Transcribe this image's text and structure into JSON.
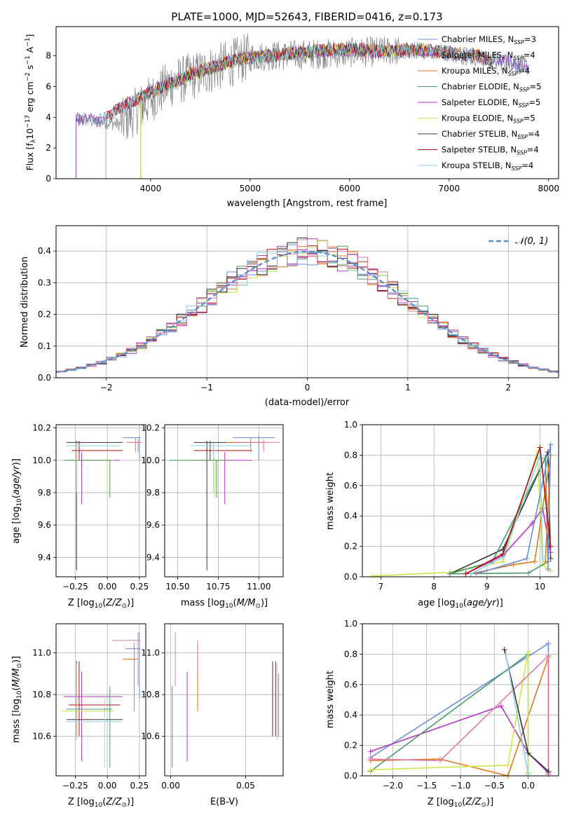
{
  "figure": {
    "title": "PLATE=1000, MJD=52643, FIBERID=0416, z=0.173"
  },
  "colors": {
    "Chabrier MILES": "#6a8fd8",
    "Salpeter MILES": "#9b35b4",
    "Kroupa MILES": "#e07a22",
    "Chabrier ELODIE": "#4a9a6a",
    "Salpeter ELODIE": "#b636c4",
    "Kroupa ELODIE": "#cfe64a",
    "Chabrier STELIB": "#333333",
    "Salpeter STELIB": "#b01010",
    "Kroupa STELIB": "#8dd3e6",
    "Kroupa STELIB (pink variant)": "#e07aa6",
    "data": "#808080"
  },
  "chart_data": [
    {
      "id": "spectrum",
      "type": "line",
      "title": "PLATE=1000, MJD=52643, FIBERID=0416, z=0.173",
      "xlabel": "wavelength [Angstrom, rest frame]",
      "ylabel": "Flux [f_λ 10^-17 erg cm^-2 s^-1 A^-1]",
      "xlim": [
        3050,
        8100
      ],
      "ylim": [
        0,
        9.9
      ],
      "xticks": [
        "4000",
        "5000",
        "6000",
        "7000",
        "8000"
      ],
      "yticks": [
        "0",
        "2",
        "4",
        "6",
        "8"
      ],
      "grid": false,
      "legend": "right",
      "series": [
        {
          "name": "Chabrier MILES, N_SSP=3",
          "x": [
            3250,
            3500,
            3800,
            4000,
            4300,
            4600,
            4900,
            5200,
            5500,
            5800,
            6100,
            6400,
            6700,
            7000,
            7300,
            7600,
            7800
          ],
          "values": [
            3.9,
            3.8,
            5.0,
            5.6,
            6.5,
            7.2,
            7.8,
            8.0,
            8.2,
            8.4,
            8.3,
            8.2,
            8.3,
            8.2,
            7.9,
            7.6,
            7.1
          ]
        },
        {
          "name": "Salpeter MILES, N_SSP=4",
          "x": [
            3250,
            3500,
            3800,
            4000,
            4300,
            4600,
            4900,
            5200,
            5500,
            5800,
            6100,
            6400,
            6700,
            7000,
            7300,
            7600,
            7800
          ],
          "values": [
            3.9,
            3.8,
            5.0,
            5.7,
            6.5,
            7.2,
            7.8,
            8.0,
            8.2,
            8.4,
            8.3,
            8.2,
            8.3,
            8.2,
            7.9,
            7.6,
            7.1
          ]
        },
        {
          "name": "Kroupa MILES, N_SSP=4",
          "x": [
            3550,
            3800,
            4000,
            4300,
            4600,
            4900,
            5200,
            5500,
            5800,
            6100,
            6400,
            6700,
            7000,
            7300,
            7450
          ],
          "values": [
            4.0,
            5.0,
            5.6,
            6.6,
            7.3,
            7.8,
            8.1,
            8.3,
            8.4,
            8.4,
            8.3,
            8.4,
            8.2,
            8.1,
            7.4
          ]
        },
        {
          "name": "Chabrier ELODIE, N_SSP=5",
          "x": [
            3900,
            4000,
            4300,
            4600,
            4900,
            5200,
            5500,
            5800,
            6100,
            6400,
            6800
          ],
          "values": [
            5.2,
            5.5,
            6.5,
            7.2,
            7.8,
            8.0,
            8.2,
            8.3,
            8.4,
            8.3,
            8.4
          ]
        },
        {
          "name": "Salpeter ELODIE, N_SSP=5",
          "x": [
            3900,
            4000,
            4300,
            4600,
            4900,
            5200,
            5500,
            5800,
            6100,
            6400,
            6800
          ],
          "values": [
            5.2,
            5.6,
            6.6,
            7.2,
            7.8,
            8.0,
            8.2,
            8.3,
            8.4,
            8.3,
            8.4
          ]
        },
        {
          "name": "Kroupa ELODIE, N_SSP=5",
          "x": [
            3900,
            4000,
            4300,
            4600,
            4900,
            5200,
            5500,
            5800,
            6100,
            6400,
            6800
          ],
          "values": [
            5.2,
            5.5,
            6.5,
            7.1,
            7.7,
            8.0,
            8.2,
            8.3,
            8.4,
            8.3,
            8.4
          ]
        },
        {
          "name": "Chabrier STELIB, N_SSP=4",
          "x": [
            3550,
            3800,
            4000,
            4300,
            4600,
            4900,
            5200,
            5500,
            5800,
            6100,
            6400,
            6700,
            7000,
            7300,
            7450
          ],
          "values": [
            4.0,
            5.0,
            5.6,
            6.5,
            7.2,
            7.8,
            8.0,
            8.2,
            8.4,
            8.4,
            8.3,
            8.4,
            8.2,
            8.0,
            7.4
          ]
        },
        {
          "name": "Salpeter STELIB, N_SSP=4",
          "x": [
            3550,
            3800,
            4000,
            4300,
            4600,
            4900,
            5200,
            5500,
            5800,
            6100,
            6400,
            6700,
            7000,
            7300,
            7450
          ],
          "values": [
            4.0,
            5.0,
            5.6,
            6.5,
            7.2,
            7.8,
            8.0,
            8.2,
            8.4,
            8.4,
            8.3,
            8.4,
            8.2,
            8.0,
            7.4
          ]
        },
        {
          "name": "Kroupa STELIB, N_SSP=4",
          "x": [
            3550,
            3800,
            4000,
            4300,
            4600,
            4900,
            5200,
            5500,
            5800,
            6100,
            6400,
            6700,
            7000,
            7300,
            7450
          ],
          "values": [
            4.0,
            5.0,
            5.6,
            6.5,
            7.2,
            7.8,
            8.0,
            8.2,
            8.4,
            8.4,
            8.3,
            8.4,
            8.2,
            8.0,
            7.4
          ]
        }
      ]
    },
    {
      "id": "residuals",
      "type": "line",
      "xlabel": "(data-model)/error",
      "ylabel": "Normed distribution",
      "xlim": [
        -2.5,
        2.5
      ],
      "ylim": [
        0,
        0.48
      ],
      "xticks": [
        "−2",
        "−1",
        "0",
        "1",
        "2"
      ],
      "yticks": [
        "0.0",
        "0.1",
        "0.2",
        "0.3",
        "0.4"
      ],
      "grid": true,
      "legend": "top-right",
      "legend_label": "𝒩(0, 1)",
      "gaussian": {
        "mu": 0,
        "sigma": 1
      },
      "bin_width": 0.1
    },
    {
      "id": "age-vs-Z",
      "type": "scatter",
      "xlabel": "Z [log10(Z/Z⊙)]",
      "ylabel": "age  [log10(age/yr)]",
      "xlim": [
        -0.4,
        0.3
      ],
      "ylim": [
        9.28,
        10.22
      ],
      "xticks": [
        "−0.25",
        "0.00",
        "0.25"
      ],
      "yticks": [
        "9.4",
        "9.6",
        "9.8",
        "10.0",
        "10.2"
      ],
      "grid": true
    },
    {
      "id": "age-vs-mass",
      "type": "scatter",
      "xlabel": "mass [log10(M/M⊙)]",
      "xlim": [
        10.42,
        11.15
      ],
      "ylim": [
        9.28,
        10.22
      ],
      "xticks": [
        "10.50",
        "10.75",
        "11.00"
      ],
      "yticks": [
        "9.4",
        "9.6",
        "9.8",
        "10.0",
        "10.2"
      ],
      "grid": true
    },
    {
      "id": "weight-vs-age",
      "type": "line",
      "xlabel": "age  [log10(age/yr)]",
      "ylabel": "mass weight",
      "xlim": [
        6.65,
        10.35
      ],
      "ylim": [
        0,
        1.0
      ],
      "xticks": [
        "7",
        "8",
        "9",
        "10"
      ],
      "yticks": [
        "0.0",
        "0.2",
        "0.4",
        "0.6",
        "0.8",
        "1.0"
      ],
      "grid": true
    },
    {
      "id": "mass-vs-Z",
      "type": "scatter",
      "xlabel": "Z [log10(Z/Z⊙)]",
      "ylabel": "mass [log10(M/M⊙)]",
      "xlim": [
        -0.4,
        0.3
      ],
      "ylim": [
        10.41,
        11.14
      ],
      "xticks": [
        "−0.25",
        "0.00",
        "0.25"
      ],
      "yticks": [
        "10.6",
        "10.8",
        "11.0"
      ],
      "grid": true
    },
    {
      "id": "mass-vs-ebv",
      "type": "scatter",
      "xlabel": "E(B-V)",
      "xlim": [
        -0.004,
        0.075
      ],
      "ylim": [
        10.41,
        11.14
      ],
      "xticks": [
        "0.00",
        "0.05"
      ],
      "yticks": [
        "10.6",
        "10.8",
        "11.0"
      ],
      "grid": true
    },
    {
      "id": "weight-vs-Z",
      "type": "line",
      "xlabel": "Z [log10(Z/Z⊙)]",
      "ylabel": "mass weight",
      "xlim": [
        -2.45,
        0.45
      ],
      "ylim": [
        0,
        1.0
      ],
      "xticks": [
        "−2.0",
        "−1.5",
        "−1.0",
        "−0.5",
        "0.0"
      ],
      "yticks": [
        "0.0",
        "0.2",
        "0.4",
        "0.6",
        "0.8",
        "1.0"
      ],
      "grid": true
    }
  ]
}
